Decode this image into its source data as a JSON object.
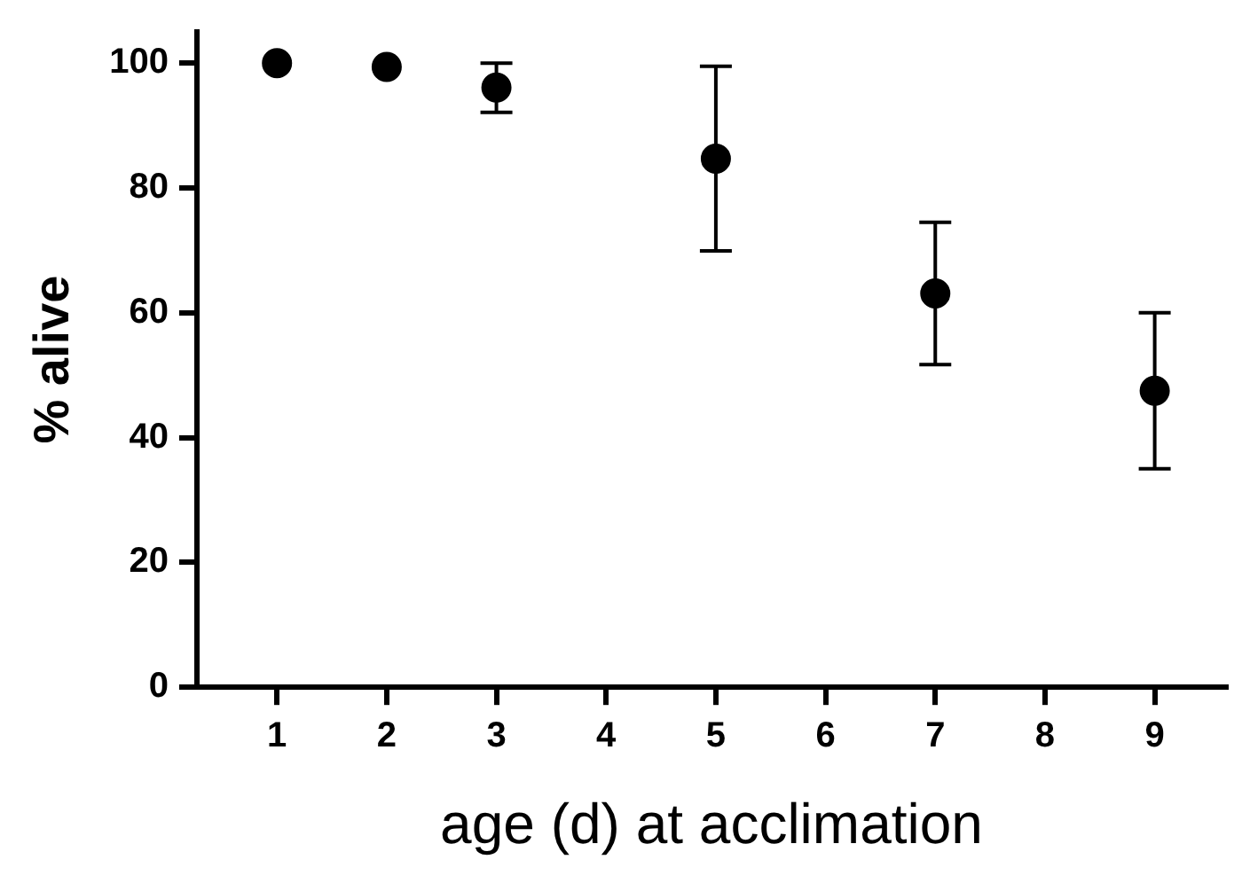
{
  "chart_data": {
    "type": "scatter",
    "xlabel": "age (d) at acclimation",
    "ylabel": "% alive",
    "x": [
      1,
      2,
      3,
      5,
      7,
      9
    ],
    "series": [
      {
        "color": "#000000",
        "values": [
          100,
          99.4,
          96.1,
          84.7,
          63.1,
          47.5
        ],
        "errors": [
          null,
          null,
          [
            92.1,
            100
          ],
          [
            69.9,
            99.5
          ],
          [
            51.7,
            74.5
          ],
          [
            35,
            60
          ]
        ]
      }
    ],
    "xlim": [
      0.27,
      9.65
    ],
    "xticks": [
      1,
      2,
      3,
      4,
      5,
      6,
      7,
      8,
      9
    ],
    "ylim": [
      0,
      105
    ],
    "yticks": [
      0,
      20,
      40,
      60,
      80,
      100
    ],
    "grid": false,
    "legend": false,
    "marker": "circle"
  }
}
